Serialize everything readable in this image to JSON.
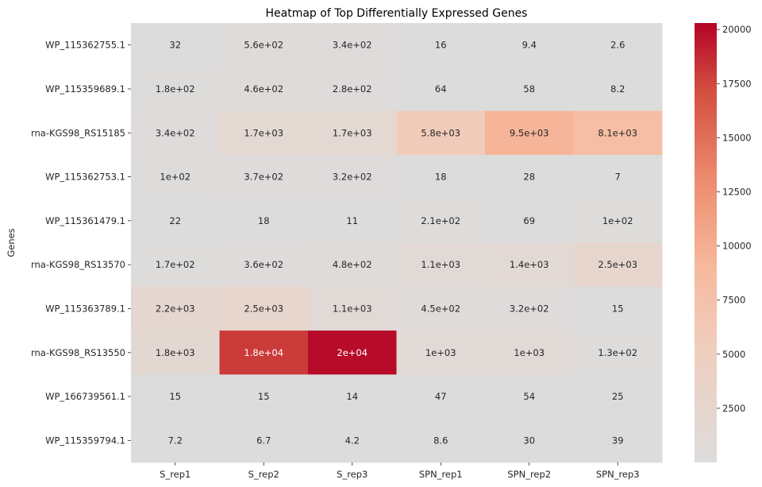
{
  "chart_data": {
    "type": "heatmap",
    "title": "Heatmap of Top Differentially Expressed Genes",
    "xlabel": "",
    "ylabel": "Genes",
    "columns": [
      "S_rep1",
      "S_rep2",
      "S_rep3",
      "SPN_rep1",
      "SPN_rep2",
      "SPN_rep3"
    ],
    "rows": [
      "WP_115362755.1",
      "WP_115359689.1",
      "rna-KGS98_RS15185",
      "WP_115362753.1",
      "WP_115361479.1",
      "rna-KGS98_RS13570",
      "WP_115363789.1",
      "rna-KGS98_RS13550",
      "WP_166739561.1",
      "WP_115359794.1"
    ],
    "values": [
      [
        32,
        560,
        340,
        16,
        9.4,
        2.6
      ],
      [
        180,
        460,
        280,
        64,
        58,
        8.2
      ],
      [
        340,
        1700,
        1700,
        5800,
        9500,
        8100
      ],
      [
        100,
        370,
        320,
        18,
        28,
        7
      ],
      [
        22,
        18,
        11,
        210,
        69,
        100
      ],
      [
        170,
        360,
        480,
        1100,
        1400,
        2500
      ],
      [
        2200,
        2500,
        1100,
        450,
        320,
        15
      ],
      [
        1800,
        18000,
        20000,
        1000,
        1000,
        130
      ],
      [
        15,
        15,
        14,
        47,
        54,
        25
      ],
      [
        7.2,
        6.7,
        4.2,
        8.6,
        30,
        39
      ]
    ],
    "annotations": [
      [
        "32",
        "5.6e+02",
        "3.4e+02",
        "16",
        "9.4",
        "2.6"
      ],
      [
        "1.8e+02",
        "4.6e+02",
        "2.8e+02",
        "64",
        "58",
        "8.2"
      ],
      [
        "3.4e+02",
        "1.7e+03",
        "1.7e+03",
        "5.8e+03",
        "9.5e+03",
        "8.1e+03"
      ],
      [
        "1e+02",
        "3.7e+02",
        "3.2e+02",
        "18",
        "28",
        "7"
      ],
      [
        "22",
        "18",
        "11",
        "2.1e+02",
        "69",
        "1e+02"
      ],
      [
        "1.7e+02",
        "3.6e+02",
        "4.8e+02",
        "1.1e+03",
        "1.4e+03",
        "2.5e+03"
      ],
      [
        "2.2e+03",
        "2.5e+03",
        "1.1e+03",
        "4.5e+02",
        "3.2e+02",
        "15"
      ],
      [
        "1.8e+03",
        "1.8e+04",
        "2e+04",
        "1e+03",
        "1e+03",
        "1.3e+02"
      ],
      [
        "15",
        "15",
        "14",
        "47",
        "54",
        "25"
      ],
      [
        "7.2",
        "6.7",
        "4.2",
        "8.6",
        "30",
        "39"
      ]
    ],
    "colormap": "coolwarm (upper half: gray to red)",
    "color_stops": [
      "#dddcdc",
      "#f7b89c",
      "#b40426"
    ],
    "vmin": 0,
    "vmax": 20300,
    "colorbar": {
      "ticks": [
        2500,
        5000,
        7500,
        10000,
        12500,
        15000,
        17500,
        20000
      ],
      "tick_labels": [
        "2500",
        "5000",
        "7500",
        "10000",
        "12500",
        "15000",
        "17500",
        "20000"
      ],
      "placement": "right"
    },
    "grid": false,
    "legend": "none"
  }
}
